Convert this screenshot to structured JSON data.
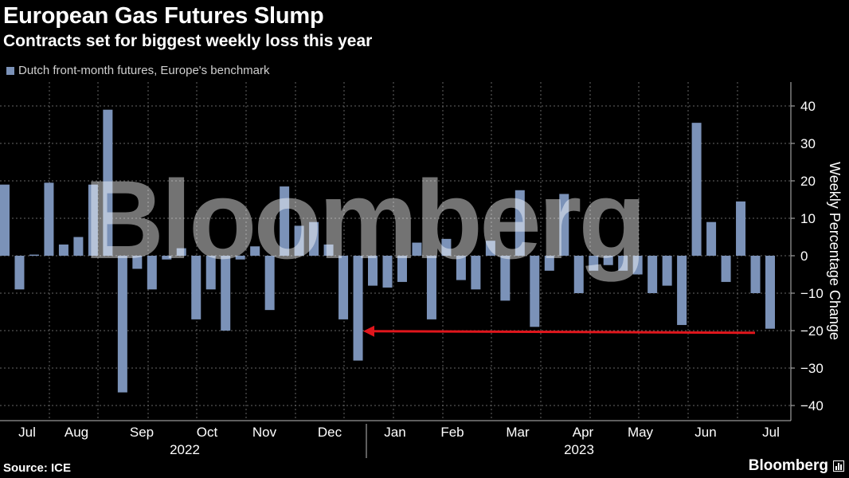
{
  "header": {
    "title": "European Gas Futures Slump",
    "subtitle": "Contracts set for biggest weekly loss this year"
  },
  "footer": {
    "source": "Source: ICE",
    "brand": "Bloomberg"
  },
  "watermark": "Bloomberg",
  "colors": {
    "bar": "#7b92b8",
    "arrow": "#e0161c",
    "grid": "#666666",
    "background": "#000000"
  },
  "chart_data": {
    "type": "bar",
    "series": [
      {
        "name": "Dutch front-month futures, Europe's benchmark",
        "values": [
          19,
          -9,
          0.3,
          19.5,
          3,
          5,
          19,
          39,
          -36.5,
          -3.5,
          -9,
          -1,
          2,
          -17,
          -9,
          -20,
          -1,
          2.5,
          -14.5,
          18.5,
          8,
          9,
          3,
          -17,
          -28,
          -8,
          -8.5,
          -7,
          3.5,
          -17,
          4.5,
          -6.5,
          -9,
          4,
          -12,
          17.5,
          -19,
          -4,
          16.5,
          -10,
          -4,
          -2.5,
          -4,
          -5,
          -10,
          -8,
          -18.5,
          35.5,
          9,
          -7,
          14.5,
          -10,
          -19.5
        ]
      }
    ],
    "ylabel": "Weekly Percentage Change",
    "ylim": [
      -44,
      45
    ],
    "yticks": [
      40,
      30,
      20,
      10,
      0,
      -10,
      -20,
      -30,
      -40
    ],
    "months": [
      "Jul",
      "Aug",
      "Sep",
      "Oct",
      "Nov",
      "Dec",
      "Jan",
      "Feb",
      "Mar",
      "Apr",
      "May",
      "Jun",
      "Jul"
    ],
    "years": [
      "2022",
      "2023"
    ],
    "annotation": {
      "type": "arrow",
      "from_value": -21,
      "points_to_value": -21,
      "description": ""
    },
    "grid": true
  }
}
